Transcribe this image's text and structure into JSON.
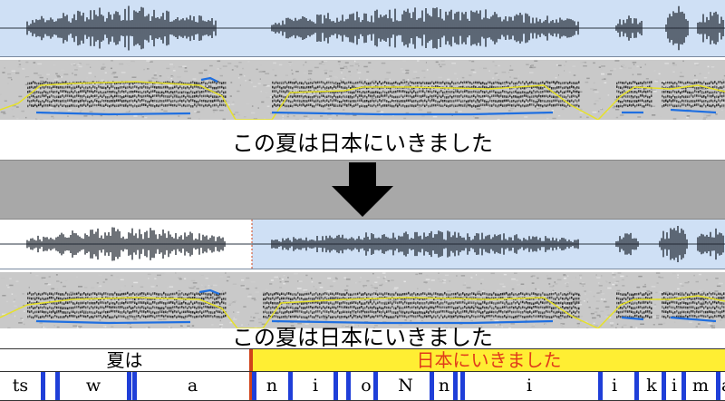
{
  "caption_original": "この夏は日本にいきました",
  "caption_edited": "この夏は日本にいきました",
  "word_tier": [
    {
      "label": "夏は",
      "highlighted": false
    },
    {
      "label": "日本にいきました",
      "highlighted": true
    }
  ],
  "phone_tier": [
    "ts",
    "w",
    "a",
    "n",
    "i",
    "o",
    "N",
    "n",
    "i",
    "i",
    "k",
    "i",
    "m",
    "a"
  ],
  "colors": {
    "wave_bg": "#cfe0f5",
    "pitch_line": "#e6e12a",
    "formant_line": "#1f6fe0",
    "highlight_fill": "#ffee33",
    "highlight_text": "#e03a1a",
    "boundary_line": "#d0431a",
    "phone_tick": "#1f3fd8",
    "arrow": "#000000"
  }
}
